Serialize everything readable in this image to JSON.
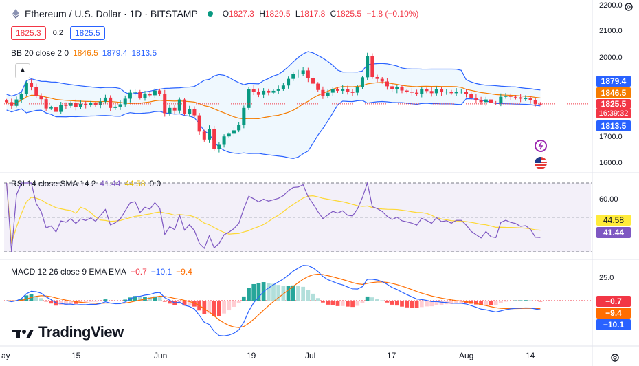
{
  "header": {
    "title": "Ethereum / U.S. Dollar · 1D · BITSTAMP",
    "ohlc": {
      "o_label": "O",
      "o": "1827.3",
      "h_label": "H",
      "h": "1829.5",
      "l_label": "L",
      "l": "1817.8",
      "c_label": "C",
      "c": "1825.5",
      "change": "−1.8 (−0.10%)"
    },
    "bid": "1825.3",
    "spread": "0.2",
    "ask": "1825.5"
  },
  "legends": {
    "bb": {
      "label": "BB 20 close 2 0",
      "basis": "1846.5",
      "upper": "1879.4",
      "lower": "1813.5"
    },
    "rsi": {
      "label": "RSI 14 close SMA 14 2",
      "rsi": "41.44",
      "sma": "44.58",
      "extra": "0 0"
    },
    "macd": {
      "label": "MACD 12 26 close 9 EMA EMA",
      "hist": "−0.7",
      "macd": "−10.1",
      "signal": "−9.4"
    }
  },
  "price_tags": {
    "upper": "1879.4",
    "basis": "1846.5",
    "last": "1825.5",
    "countdown": "16:39:32",
    "lower": "1813.5"
  },
  "rsi_tags": {
    "sma": "44.58",
    "rsi": "41.44"
  },
  "macd_tags": {
    "hist": "−0.7",
    "signal": "−9.4",
    "macd": "−10.1"
  },
  "axis": {
    "price_ticks": [
      "2200.0",
      "2100.0",
      "2000.0",
      "1700.0",
      "1600.0"
    ],
    "rsi_ticks": [
      "60.00"
    ],
    "macd_ticks": [
      "25.0"
    ],
    "x_ticks": [
      "ay",
      "15",
      "Jun",
      "19",
      "Jul",
      "17",
      "Aug",
      "14"
    ]
  },
  "colors": {
    "up": "#089981",
    "down": "#f23645",
    "bb": "#2962ff",
    "basis": "#f57c00",
    "rsi": "#7e57c2",
    "rsi_sma": "#fdd835",
    "macd": "#2962ff",
    "signal": "#ff6d00"
  },
  "brand": "TradingView",
  "chart_data": {
    "type": "candlestick",
    "closes": [
      1832,
      1818,
      1842,
      1862,
      1905,
      1890,
      1856,
      1843,
      1808,
      1812,
      1795,
      1822,
      1818,
      1828,
      1814,
      1826,
      1822,
      1828,
      1820,
      1834,
      1849,
      1810,
      1815,
      1824,
      1845,
      1868,
      1872,
      1848,
      1862,
      1858,
      1876,
      1864,
      1790,
      1810,
      1800,
      1842,
      1788,
      1805,
      1782,
      1720,
      1690,
      1730,
      1655,
      1670,
      1702,
      1712,
      1725,
      1745,
      1810,
      1882,
      1872,
      1860,
      1875,
      1868,
      1875,
      1882,
      1895,
      1920,
      1938,
      1940,
      1952,
      1922,
      1902,
      1878,
      1855,
      1868,
      1880,
      1875,
      1882,
      1870,
      1868,
      1888,
      1926,
      2006,
      1927,
      1920,
      1910,
      1892,
      1880,
      1888,
      1876,
      1872,
      1868,
      1862,
      1880,
      1874,
      1866,
      1880,
      1870,
      1872,
      1866,
      1872,
      1872,
      1862,
      1848,
      1840,
      1832,
      1842,
      1830,
      1828,
      1852,
      1856,
      1852,
      1850,
      1845,
      1846,
      1840,
      1826,
      1825.5
    ],
    "series": [
      {
        "name": "BB upper",
        "note": "upper band"
      },
      {
        "name": "BB basis",
        "note": "20 SMA"
      },
      {
        "name": "BB lower",
        "note": "lower band"
      }
    ],
    "ylim": [
      1560,
      2220
    ]
  }
}
